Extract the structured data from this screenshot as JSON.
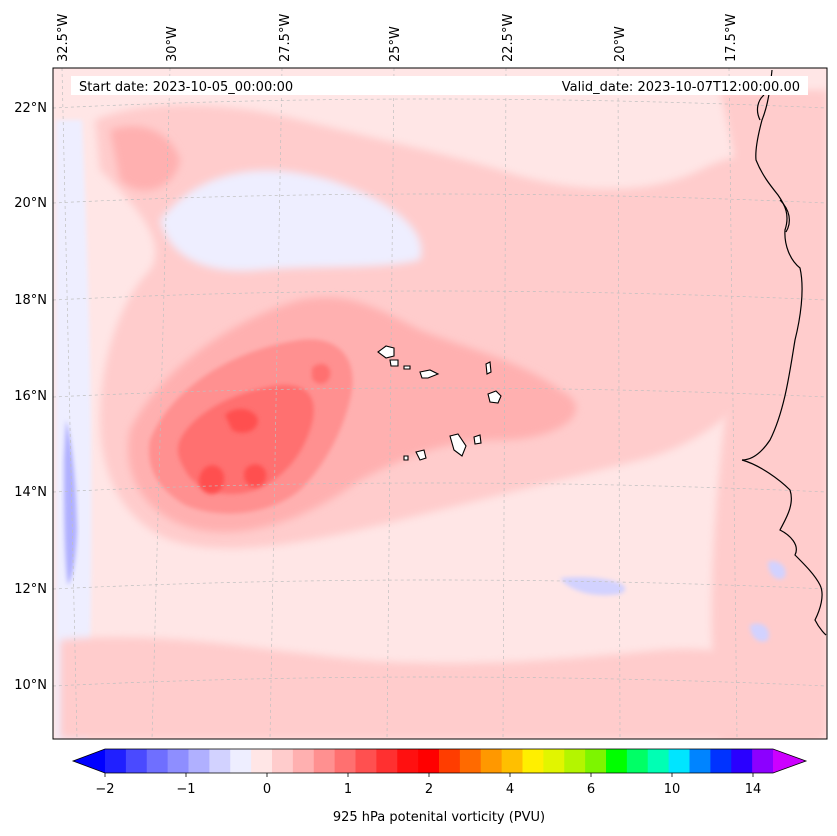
{
  "map": {
    "start_date": "Start date: 2023-10-05_00:00:00",
    "valid_date": "Valid_date: 2023-10-07T12:00:00.00",
    "lon_labels": [
      "32.5°W",
      "30°W",
      "27.5°W",
      "25°W",
      "22.5°W",
      "20°W",
      "17.5°W"
    ],
    "lat_labels": [
      "22°N",
      "20°N",
      "18°N",
      "16°N",
      "14°N",
      "12°N",
      "10°N"
    ],
    "background_color": "#ffe6e6"
  },
  "colorbar": {
    "title": "925 hPa potenital vorticity (PVU)",
    "tick_labels": [
      "−2",
      "−1",
      "0",
      "1",
      "2",
      "4",
      "6",
      "10",
      "14"
    ],
    "under_color": "#0000ff",
    "over_color": "#cc00ff",
    "colors": [
      "#2020ff",
      "#4a4aff",
      "#6f6fff",
      "#8e8eff",
      "#b0b0ff",
      "#d2d2ff",
      "#eeeeff",
      "#ffe6e6",
      "#ffcccc",
      "#ffb0b0",
      "#ff9090",
      "#ff7070",
      "#ff5050",
      "#ff3030",
      "#ff1010",
      "#ff0000",
      "#ff3d00",
      "#ff6a00",
      "#ff9800",
      "#ffbf00",
      "#ffef00",
      "#e1f500",
      "#b4f500",
      "#7df500",
      "#00ff00",
      "#00ff66",
      "#00ffb4",
      "#00e5ff",
      "#0084ff",
      "#0033ff",
      "#2a00ff",
      "#8c00ff"
    ]
  }
}
